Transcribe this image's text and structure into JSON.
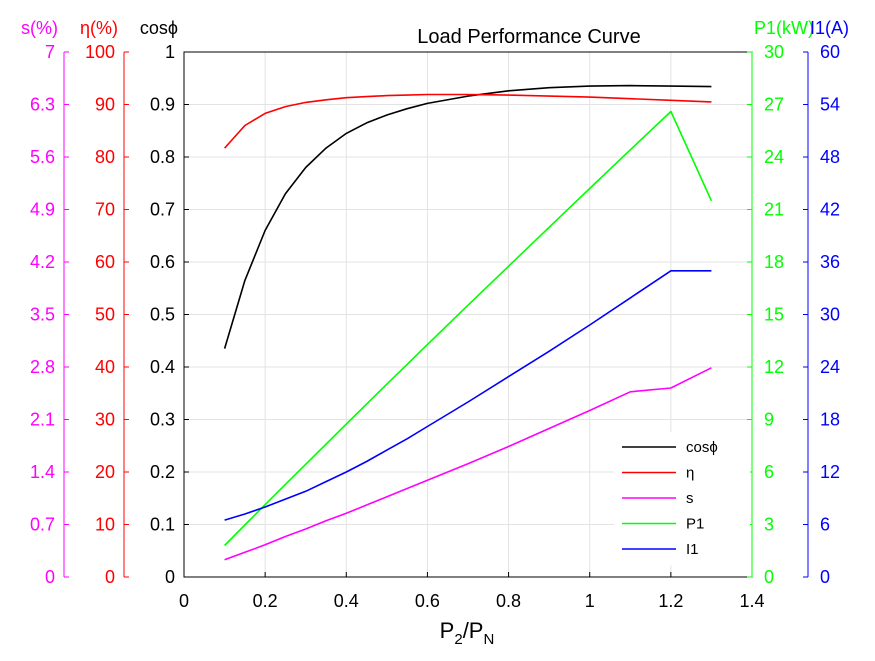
{
  "chart_data": {
    "type": "line",
    "title": "Load Performance Curve",
    "xlabel": "P2/PN",
    "xlim": [
      0,
      1.4
    ],
    "x_ticks": [
      "0",
      "0.2",
      "0.4",
      "0.6",
      "0.8",
      "1",
      "1.2",
      "1.4"
    ],
    "grid": true,
    "legend_position": "bottom-right",
    "axes": [
      {
        "id": "s",
        "label": "s(%)",
        "side": "left",
        "order": 3,
        "color": "#ff00ff",
        "ylim": [
          0,
          7
        ],
        "ticks": [
          "0",
          "0.7",
          "1.4",
          "2.1",
          "2.8",
          "3.5",
          "4.2",
          "4.9",
          "5.6",
          "6.3",
          "7"
        ]
      },
      {
        "id": "eta",
        "label": "η(%)",
        "side": "left",
        "order": 2,
        "color": "#ff0000",
        "ylim": [
          0,
          100
        ],
        "ticks": [
          "0",
          "10",
          "20",
          "30",
          "40",
          "50",
          "60",
          "70",
          "80",
          "90",
          "100"
        ]
      },
      {
        "id": "cosphi",
        "label": "cosϕ",
        "side": "left",
        "order": 1,
        "color": "#000000",
        "ylim": [
          0,
          1
        ],
        "ticks": [
          "0",
          "0.1",
          "0.2",
          "0.3",
          "0.4",
          "0.5",
          "0.6",
          "0.7",
          "0.8",
          "0.9",
          "1"
        ]
      },
      {
        "id": "p1",
        "label": "P1(kW)",
        "side": "right",
        "order": 1,
        "color": "#00ff00",
        "ylim": [
          0,
          30
        ],
        "ticks": [
          "0",
          "3",
          "6",
          "9",
          "12",
          "15",
          "18",
          "21",
          "24",
          "27",
          "30"
        ]
      },
      {
        "id": "i1",
        "label": "I1(A)",
        "side": "right",
        "order": 2,
        "color": "#0000ff",
        "ylim": [
          0,
          60
        ],
        "ticks": [
          "0",
          "6",
          "12",
          "18",
          "24",
          "30",
          "36",
          "42",
          "48",
          "54",
          "60"
        ]
      }
    ],
    "x": [
      0.1,
      0.15,
      0.2,
      0.25,
      0.3,
      0.35,
      0.4,
      0.45,
      0.5,
      0.55,
      0.6,
      0.7,
      0.8,
      0.9,
      1.0,
      1.1,
      1.2,
      1.3
    ],
    "series": [
      {
        "name": "cosϕ",
        "axis": "cosphi",
        "color": "#000000",
        "values": [
          0.435,
          0.565,
          0.66,
          0.73,
          0.78,
          0.817,
          0.845,
          0.865,
          0.88,
          0.892,
          0.902,
          0.916,
          0.926,
          0.932,
          0.935,
          0.936,
          0.935,
          0.934
        ]
      },
      {
        "name": "η",
        "axis": "eta",
        "color": "#ff0000",
        "values": [
          81.7,
          86.0,
          88.3,
          89.6,
          90.4,
          90.9,
          91.3,
          91.5,
          91.7,
          91.8,
          91.9,
          91.9,
          91.8,
          91.6,
          91.4,
          91.1,
          90.8,
          90.5
        ]
      },
      {
        "name": "s",
        "axis": "s",
        "color": "#ff00ff",
        "values": [
          0.23,
          0.33,
          0.43,
          0.54,
          0.64,
          0.75,
          0.85,
          0.96,
          1.07,
          1.18,
          1.29,
          1.51,
          1.74,
          1.98,
          2.22,
          2.47,
          2.52,
          2.79
        ]
      },
      {
        "name": "P1",
        "axis": "p1",
        "color": "#00ff00",
        "values": [
          1.8,
          2.97,
          4.13,
          5.29,
          6.44,
          7.59,
          8.74,
          9.88,
          11.02,
          12.15,
          13.28,
          15.53,
          17.76,
          19.98,
          22.2,
          24.41,
          26.6,
          21.5
        ]
      },
      {
        "name": "I1",
        "axis": "i1",
        "color": "#0000ff",
        "values": [
          6.5,
          7.2,
          8.0,
          8.9,
          9.8,
          10.9,
          12.0,
          13.2,
          14.5,
          15.8,
          17.2,
          20.0,
          22.9,
          25.8,
          28.8,
          31.9,
          35.0,
          35.0
        ]
      }
    ],
    "legend": [
      "cosϕ",
      "η",
      "s",
      "P1",
      "I1"
    ]
  }
}
